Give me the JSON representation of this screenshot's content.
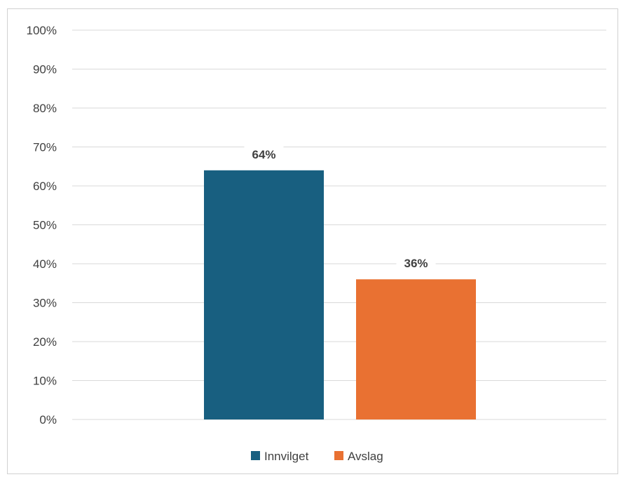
{
  "chart_data": {
    "type": "bar",
    "title": "",
    "xlabel": "",
    "ylabel": "",
    "ylim": [
      0,
      100
    ],
    "yticks": [
      "0%",
      "10%",
      "20%",
      "30%",
      "40%",
      "50%",
      "60%",
      "70%",
      "80%",
      "90%",
      "100%"
    ],
    "grid": true,
    "legend_position": "bottom",
    "series": [
      {
        "name": "Innvilget",
        "value": 64,
        "label": "64%",
        "color": "#185f80"
      },
      {
        "name": "Avslag",
        "value": 36,
        "label": "36%",
        "color": "#e97132"
      }
    ]
  }
}
